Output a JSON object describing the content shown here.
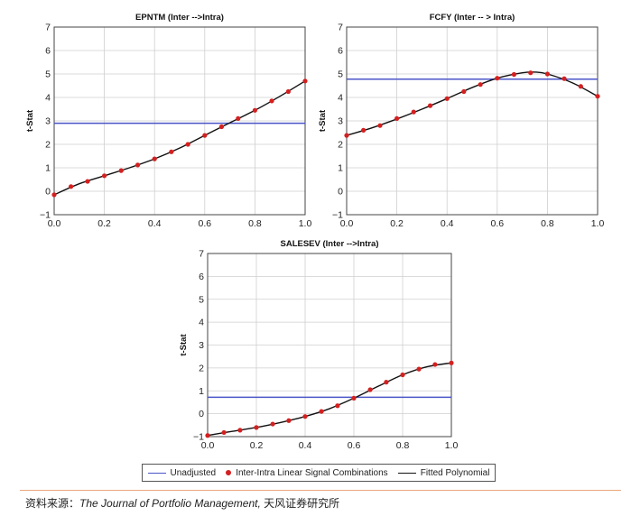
{
  "chart_data": [
    {
      "type": "line",
      "title": "EPNTM (Inter -->Intra)",
      "xlabel": "",
      "ylabel": "t-Stat",
      "xlim": [
        0.0,
        1.0
      ],
      "ylim": [
        -1,
        7
      ],
      "xticks": [
        "0.0",
        "0.2",
        "0.4",
        "0.6",
        "0.8",
        "1.0"
      ],
      "yticks": [
        "−1",
        "0",
        "1",
        "2",
        "3",
        "4",
        "5",
        "6",
        "7"
      ],
      "grid": true,
      "series": [
        {
          "name": "Unadjusted",
          "kind": "hline",
          "color": "#4a55c8",
          "value": 2.9
        },
        {
          "name": "Inter-Intra Linear Signal Combinations",
          "kind": "points",
          "color": "#d42020",
          "x": [
            0.0,
            0.067,
            0.133,
            0.2,
            0.267,
            0.333,
            0.4,
            0.467,
            0.533,
            0.6,
            0.667,
            0.733,
            0.8,
            0.867,
            0.933,
            1.0
          ],
          "y": [
            -0.15,
            0.2,
            0.42,
            0.66,
            0.88,
            1.12,
            1.38,
            1.68,
            2.0,
            2.38,
            2.75,
            3.1,
            3.45,
            3.85,
            4.25,
            4.7
          ]
        },
        {
          "name": "Fitted Polynomial",
          "kind": "curve",
          "color": "#111111",
          "x": [
            0.0,
            0.1,
            0.2,
            0.3,
            0.4,
            0.5,
            0.6,
            0.7,
            0.8,
            0.9,
            1.0
          ],
          "y": [
            -0.15,
            0.32,
            0.66,
            1.0,
            1.38,
            1.84,
            2.38,
            2.92,
            3.45,
            4.05,
            4.7
          ]
        }
      ]
    },
    {
      "type": "line",
      "title": "FCFY (Inter -- > Intra)",
      "xlabel": "",
      "ylabel": "t-Stat",
      "xlim": [
        0.0,
        1.0
      ],
      "ylim": [
        -1,
        7
      ],
      "xticks": [
        "0.0",
        "0.2",
        "0.4",
        "0.6",
        "0.8",
        "1.0"
      ],
      "yticks": [
        "−1",
        "0",
        "1",
        "2",
        "3",
        "4",
        "5",
        "6",
        "7"
      ],
      "grid": true,
      "series": [
        {
          "name": "Unadjusted",
          "kind": "hline",
          "color": "#4a55c8",
          "value": 4.78
        },
        {
          "name": "Inter-Intra Linear Signal Combinations",
          "kind": "points",
          "color": "#d42020",
          "x": [
            0.0,
            0.067,
            0.133,
            0.2,
            0.267,
            0.333,
            0.4,
            0.467,
            0.533,
            0.6,
            0.667,
            0.733,
            0.8,
            0.867,
            0.933,
            1.0
          ],
          "y": [
            2.38,
            2.6,
            2.8,
            3.1,
            3.38,
            3.65,
            3.95,
            4.25,
            4.55,
            4.82,
            4.98,
            5.05,
            5.0,
            4.8,
            4.47,
            4.05
          ]
        },
        {
          "name": "Fitted Polynomial",
          "kind": "curve",
          "color": "#111111",
          "x": [
            0.0,
            0.1,
            0.2,
            0.3,
            0.4,
            0.5,
            0.6,
            0.7,
            0.75,
            0.8,
            0.9,
            1.0
          ],
          "y": [
            2.38,
            2.7,
            3.08,
            3.5,
            3.95,
            4.42,
            4.82,
            5.05,
            5.08,
            5.0,
            4.62,
            4.05
          ]
        }
      ]
    },
    {
      "type": "line",
      "title": "SALESEV (Inter -->Intra)",
      "xlabel": "",
      "ylabel": "t-Stat",
      "xlim": [
        0.0,
        1.0
      ],
      "ylim": [
        -1,
        7
      ],
      "xticks": [
        "0.0",
        "0.2",
        "0.4",
        "0.6",
        "0.8",
        "1.0"
      ],
      "yticks": [
        "−1",
        "0",
        "1",
        "2",
        "3",
        "4",
        "5",
        "6",
        "7"
      ],
      "grid": true,
      "series": [
        {
          "name": "Unadjusted",
          "kind": "hline",
          "color": "#4a55c8",
          "value": 0.72
        },
        {
          "name": "Inter-Intra Linear Signal Combinations",
          "kind": "points",
          "color": "#d42020",
          "x": [
            0.0,
            0.067,
            0.133,
            0.2,
            0.267,
            0.333,
            0.4,
            0.467,
            0.533,
            0.6,
            0.667,
            0.733,
            0.8,
            0.867,
            0.933,
            1.0
          ],
          "y": [
            -0.95,
            -0.82,
            -0.72,
            -0.6,
            -0.45,
            -0.3,
            -0.12,
            0.1,
            0.35,
            0.68,
            1.05,
            1.38,
            1.7,
            1.95,
            2.15,
            2.22
          ]
        },
        {
          "name": "Fitted Polynomial",
          "kind": "curve",
          "color": "#111111",
          "x": [
            0.0,
            0.1,
            0.2,
            0.3,
            0.4,
            0.5,
            0.6,
            0.7,
            0.8,
            0.9,
            1.0
          ],
          "y": [
            -0.95,
            -0.77,
            -0.6,
            -0.38,
            -0.12,
            0.22,
            0.68,
            1.2,
            1.7,
            2.05,
            2.22
          ]
        }
      ]
    }
  ],
  "legend": {
    "unadjusted": "Unadjusted",
    "points": "Inter-Intra Linear Signal Combinations",
    "fitted": "Fitted Polynomial"
  },
  "source": {
    "prefix": "资料来源：",
    "journal": "The Journal of Portfolio Management,",
    "suffix": " 天风证券研究所"
  }
}
